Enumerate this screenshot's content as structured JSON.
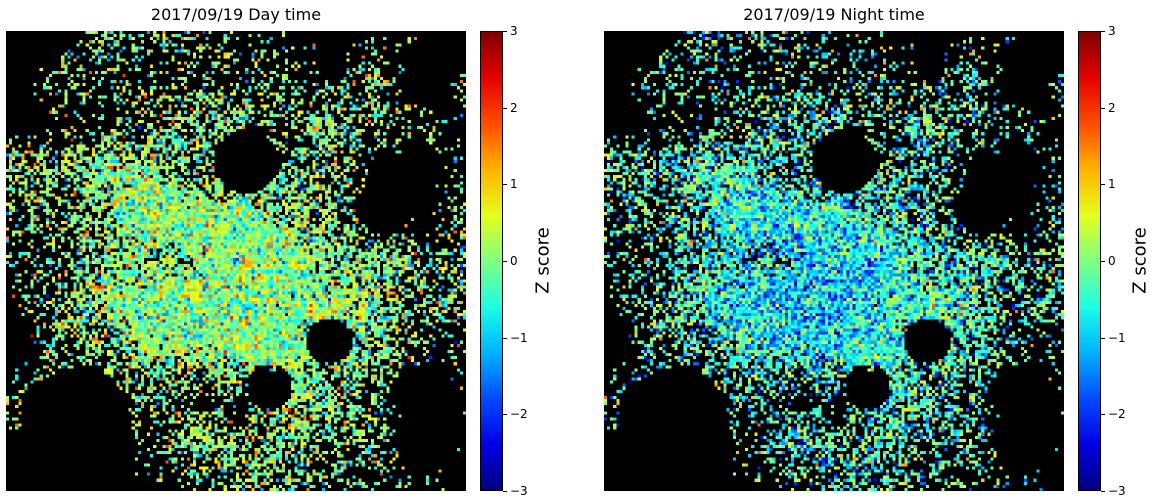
{
  "chart_data": [
    {
      "type": "heatmap",
      "title": "2017/09/19 Day time",
      "colorbar": {
        "label": "Z score",
        "min": -3,
        "max": 3,
        "ticks": [
          3,
          2,
          1,
          0,
          -1,
          -2,
          -3
        ],
        "colormap": "jet"
      },
      "background": "#000000",
      "grid": false,
      "mean_bias": 0.05
    },
    {
      "type": "heatmap",
      "title": "2017/09/19 Night time",
      "colorbar": {
        "label": "Z score",
        "min": -3,
        "max": 3,
        "ticks": [
          3,
          2,
          1,
          0,
          -1,
          -2,
          -3
        ],
        "colormap": "jet"
      },
      "background": "#000000",
      "grid": false,
      "mean_bias": -0.45
    }
  ]
}
